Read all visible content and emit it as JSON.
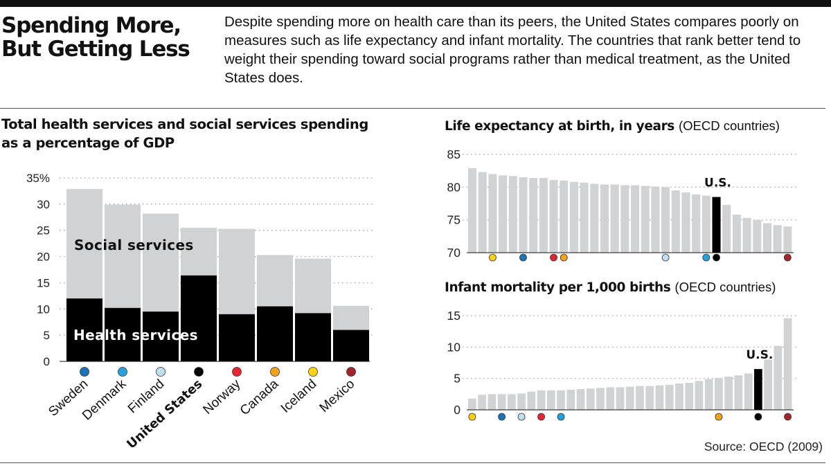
{
  "header": {
    "title_line1": "Spending More,",
    "title_line2": "But Getting Less",
    "intro": "Despite spending more on health care than its peers, the United States compares poorly on measures such as life expectancy and infant mortality. The countries that rank better tend to weight their spending toward social programs rather than medical treatment, as the United States does."
  },
  "gdp": {
    "title": "Total health services and social services spending as a percentage of GDP"
  },
  "life": {
    "title_bold": "Life expectancy at birth, in years",
    "title_note": "(OECD countries)"
  },
  "infant": {
    "title_bold": "Infant mortality per 1,000 births",
    "title_note": "(OECD countries)"
  },
  "source": "Source: OECD (2009)",
  "colors": {
    "social": "#d1d2d4",
    "health": "#000000",
    "grid": "#9a9a9a",
    "Sweden": "#1c74b8",
    "Denmark": "#22a2e0",
    "Finland": "#bfe0f3",
    "United States": "#000000",
    "Norway": "#e3262f",
    "Canada": "#f4a21c",
    "Iceland": "#fcd116",
    "Mexico": "#a3242b"
  },
  "chart_data": [
    {
      "type": "bar",
      "stacked": true,
      "categories": [
        "Sweden",
        "Denmark",
        "Finland",
        "United States",
        "Norway",
        "Canada",
        "Iceland",
        "Mexico"
      ],
      "highlight": "United States",
      "series": [
        {
          "name": "Health services",
          "values": [
            12,
            10.2,
            9.5,
            16.4,
            9,
            10.5,
            9.2,
            6
          ]
        },
        {
          "name": "Social services",
          "values": [
            20.9,
            19.7,
            18.7,
            9.1,
            16.3,
            9.8,
            10.4,
            4.6
          ]
        }
      ],
      "yticks": [
        0,
        5,
        10,
        15,
        20,
        25,
        30,
        35
      ],
      "ytick_labels": [
        "0",
        "5",
        "10",
        "15",
        "20",
        "25",
        "30",
        "35%"
      ],
      "ylim": [
        0,
        35
      ],
      "grid": true
    },
    {
      "type": "bar",
      "values": [
        82.9,
        82.3,
        82,
        81.8,
        81.7,
        81.5,
        81.4,
        81.4,
        81.1,
        81,
        80.8,
        80.7,
        80.5,
        80.4,
        80.4,
        80.3,
        80.3,
        80.2,
        80.1,
        80,
        79.5,
        79.2,
        78.9,
        78.7,
        78.5,
        77.3,
        75.8,
        75.3,
        75,
        74.5,
        74.2,
        74
      ],
      "highlight_index": 24,
      "highlight_label": "U.S.",
      "markers": [
        {
          "index": 2,
          "country": "Iceland"
        },
        {
          "index": 5,
          "country": "Sweden"
        },
        {
          "index": 8,
          "country": "Norway"
        },
        {
          "index": 9,
          "country": "Canada"
        },
        {
          "index": 19,
          "country": "Finland"
        },
        {
          "index": 23,
          "country": "Denmark"
        },
        {
          "index": 24,
          "country": "United States"
        },
        {
          "index": 31,
          "country": "Mexico"
        }
      ],
      "yticks": [
        70,
        75,
        80,
        85
      ],
      "ylim": [
        70,
        85
      ],
      "grid": true
    },
    {
      "type": "bar",
      "values": [
        1.8,
        2.4,
        2.5,
        2.5,
        2.5,
        2.6,
        2.9,
        3.1,
        3.1,
        3.1,
        3.2,
        3.3,
        3.4,
        3.5,
        3.6,
        3.6,
        3.7,
        3.8,
        3.8,
        3.9,
        4,
        4.2,
        4.3,
        4.6,
        4.9,
        5.1,
        5.3,
        5.5,
        5.8,
        6.5,
        8,
        10.2,
        14.6
      ],
      "highlight_index": 29,
      "highlight_label": "U.S.",
      "markers": [
        {
          "index": 0,
          "country": "Iceland"
        },
        {
          "index": 3,
          "country": "Sweden"
        },
        {
          "index": 5,
          "country": "Finland"
        },
        {
          "index": 7,
          "country": "Norway"
        },
        {
          "index": 9,
          "country": "Denmark"
        },
        {
          "index": 25,
          "country": "Canada"
        },
        {
          "index": 29,
          "country": "United States"
        },
        {
          "index": 32,
          "country": "Mexico"
        }
      ],
      "yticks": [
        0,
        5,
        10,
        15
      ],
      "ylim": [
        0,
        15
      ],
      "grid": true
    }
  ]
}
